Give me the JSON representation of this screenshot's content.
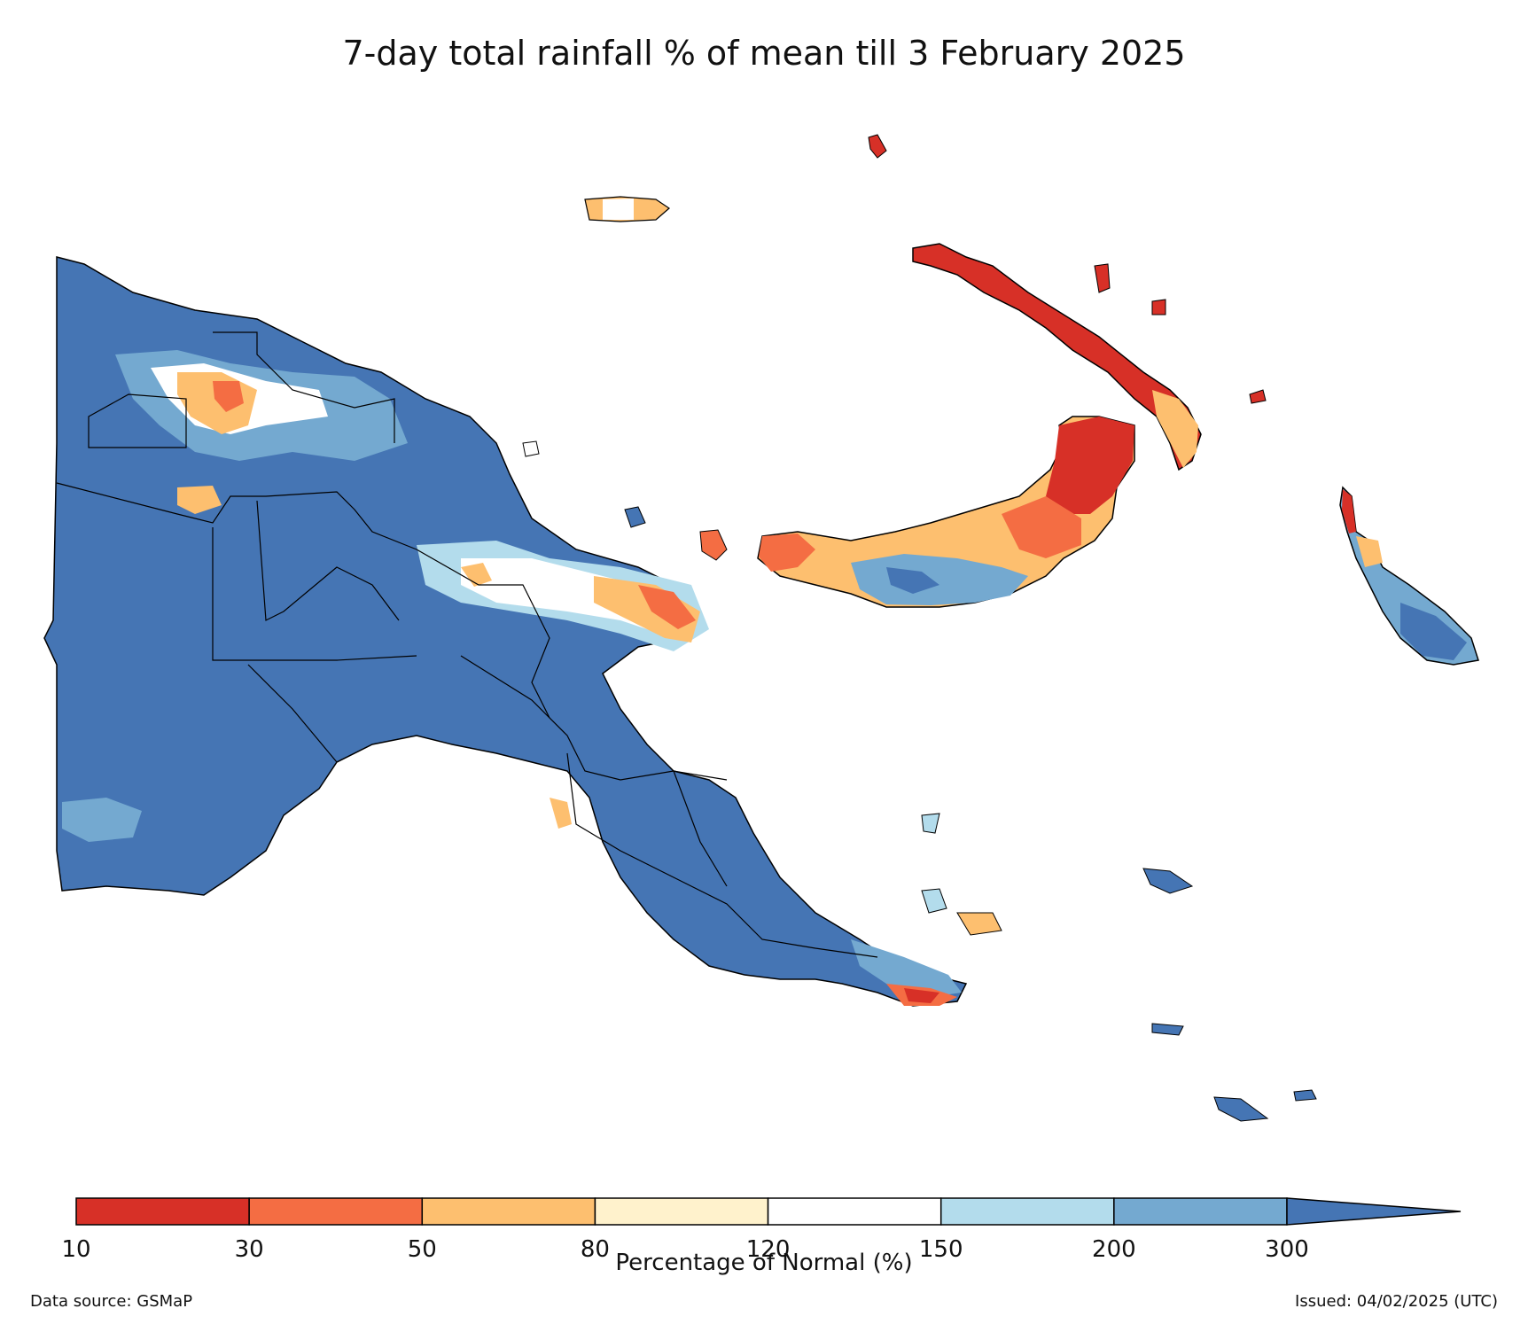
{
  "title": "7-day total rainfall % of mean till 3 February 2025",
  "colorbar": {
    "label": "Percentage of Normal (%)",
    "ticks": [
      "10",
      "30",
      "50",
      "80",
      "120",
      "150",
      "200",
      "300"
    ],
    "classes": [
      {
        "range": "10-30",
        "color": "#d73027"
      },
      {
        "range": "30-50",
        "color": "#f46d43"
      },
      {
        "range": "50-80",
        "color": "#fdbf6f"
      },
      {
        "range": "80-120",
        "color": "#fff2cc"
      },
      {
        "range": "120-150",
        "color": "#ffffff"
      },
      {
        "range": "150-200",
        "color": "#b3dcec"
      },
      {
        "range": "200-300",
        "color": "#74a9d0"
      },
      {
        "range": ">300",
        "color": "#4575b4"
      }
    ]
  },
  "footer": {
    "source": "Data source: GSMaP",
    "issued": "Issued: 04/02/2025 (UTC)"
  }
}
